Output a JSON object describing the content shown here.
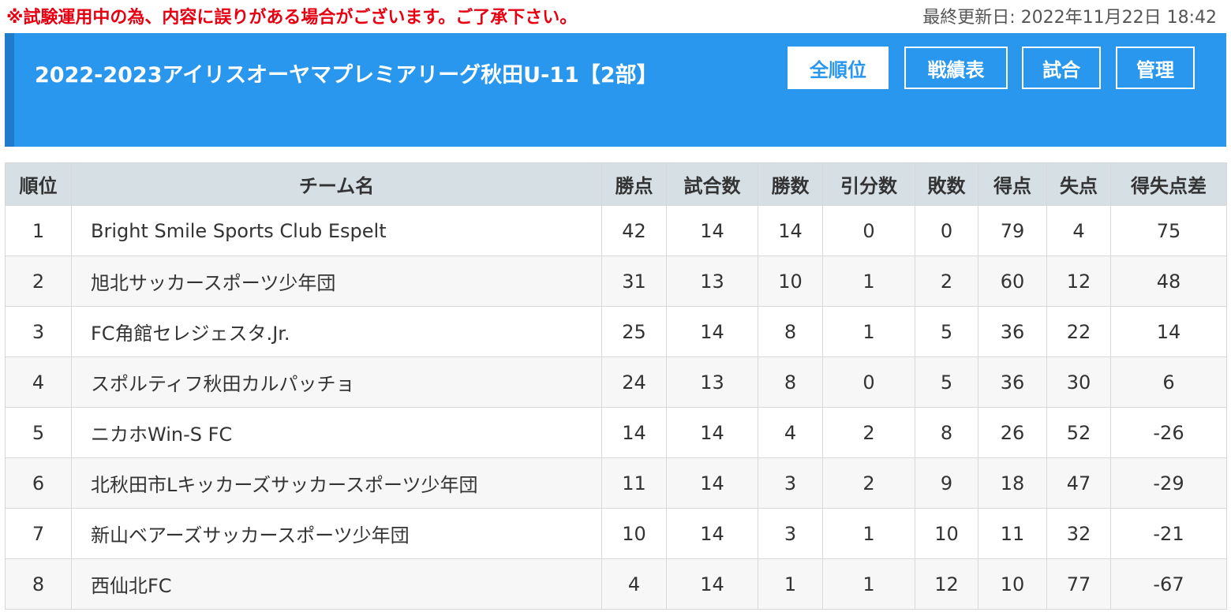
{
  "notice": "※試験運用中の為、内容に誤りがある場合がございます。ご了承下さい。",
  "last_updated": "最終更新日: 2022年11月22日 18:42",
  "league_title": "2022-2023アイリスオーヤマプレミアリーグ秋田U-11【2部】",
  "nav": {
    "overall_ranking": "全順位",
    "results_table": "戦績表",
    "matches": "試合",
    "admin": "管理",
    "active": "overall_ranking"
  },
  "table": {
    "headers": [
      "順位",
      "チーム名",
      "勝点",
      "試合数",
      "勝数",
      "引分数",
      "敗数",
      "得点",
      "失点",
      "得失点差"
    ],
    "rows": [
      [
        "1",
        "Bright Smile Sports Club Espelt",
        "42",
        "14",
        "14",
        "0",
        "0",
        "79",
        "4",
        "75"
      ],
      [
        "2",
        "旭北サッカースポーツ少年団",
        "31",
        "13",
        "10",
        "1",
        "2",
        "60",
        "12",
        "48"
      ],
      [
        "3",
        "FC角館セレジェスタ.Jr.",
        "25",
        "14",
        "8",
        "1",
        "5",
        "36",
        "22",
        "14"
      ],
      [
        "4",
        "スポルティフ秋田カルパッチョ",
        "24",
        "13",
        "8",
        "0",
        "5",
        "36",
        "30",
        "6"
      ],
      [
        "5",
        "ニカホWin-S FC",
        "14",
        "14",
        "4",
        "2",
        "8",
        "26",
        "52",
        "-26"
      ],
      [
        "6",
        "北秋田市Lキッカーズサッカースポーツ少年団",
        "11",
        "14",
        "3",
        "2",
        "9",
        "18",
        "47",
        "-29"
      ],
      [
        "7",
        "新山ベアーズサッカースポーツ少年団",
        "10",
        "14",
        "3",
        "1",
        "10",
        "11",
        "32",
        "-21"
      ],
      [
        "8",
        "西仙北FC",
        "4",
        "14",
        "1",
        "1",
        "12",
        "10",
        "77",
        "-67"
      ]
    ]
  },
  "colors": {
    "notice_red": "#e60012",
    "banner_blue": "#2a97ee",
    "header_gray": "#d6dfe4"
  }
}
